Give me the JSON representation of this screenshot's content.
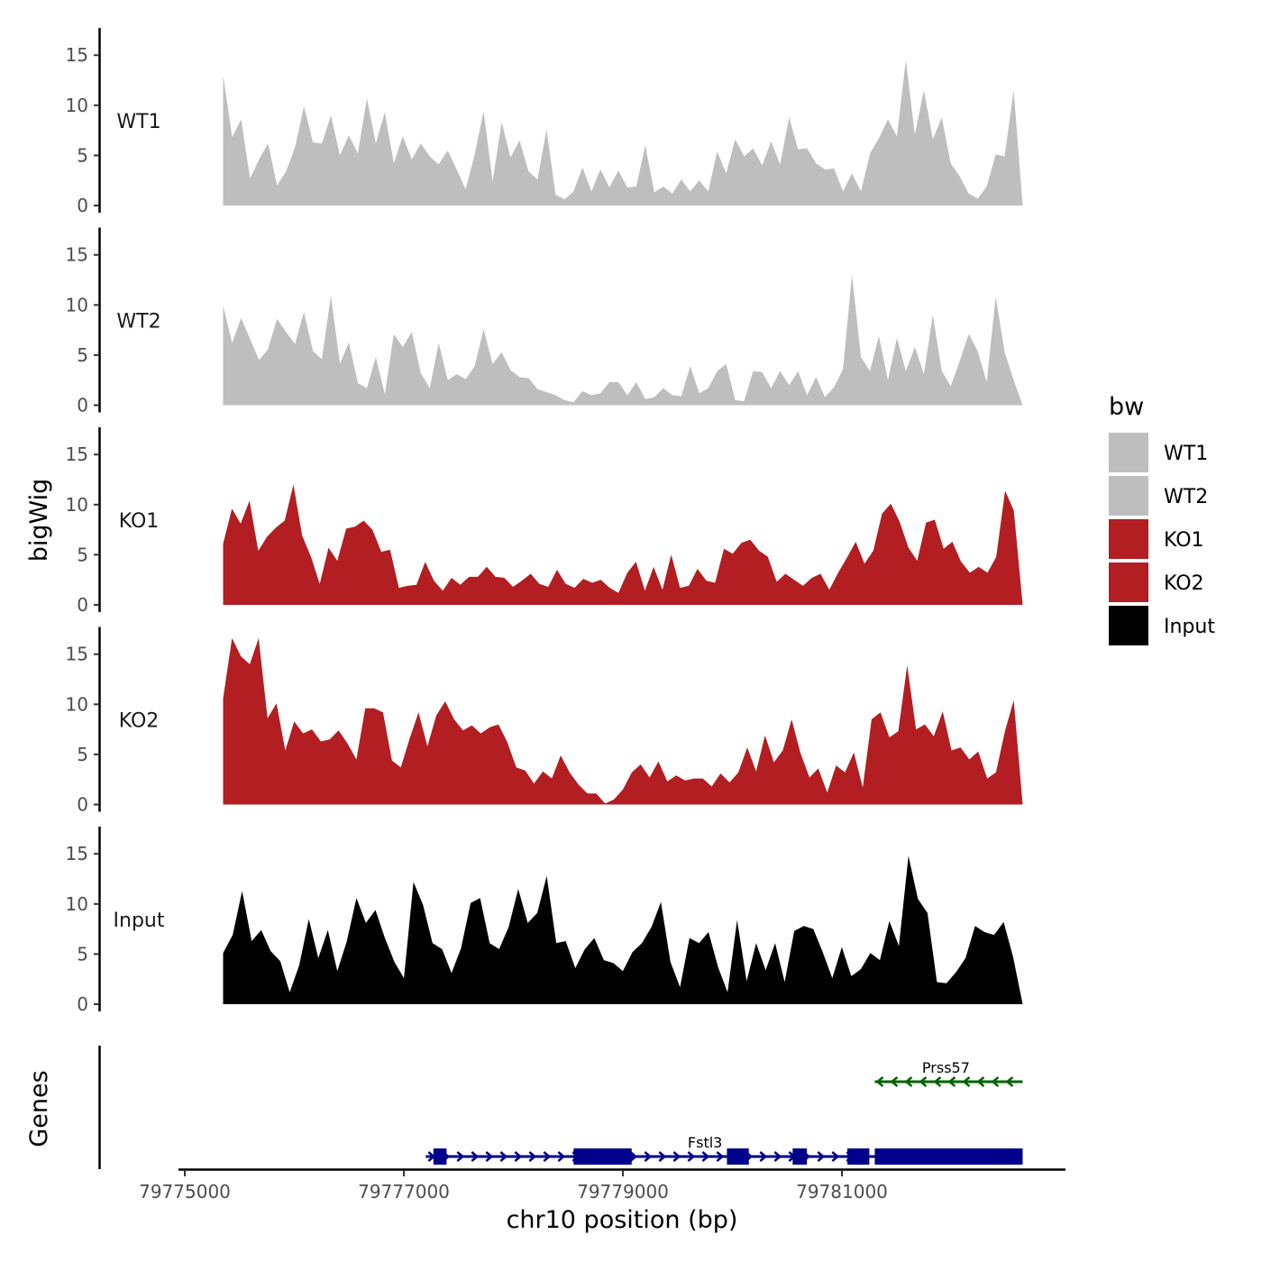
{
  "chart_data": {
    "type": "area",
    "title": "",
    "xlabel": "chr10 position (bp)",
    "ylabel": "bigWig",
    "genes_label": "Genes",
    "ylim": [
      0,
      17
    ],
    "yticks": [
      0,
      5,
      10,
      15
    ],
    "xlim": [
      79775000,
      79783000
    ],
    "xticks": [
      79775000,
      79777000,
      79779000,
      79781000
    ],
    "xtick_labels": [
      "79775000",
      "79777000",
      "79779000",
      "79781000"
    ],
    "legend": {
      "title": "bw",
      "position": "right",
      "entries": [
        {
          "label": "WT1",
          "color": "#bebebe"
        },
        {
          "label": "WT2",
          "color": "#bebebe"
        },
        {
          "label": "KO1",
          "color": "#b21e21"
        },
        {
          "label": "KO2",
          "color": "#b21e21"
        },
        {
          "label": "Input",
          "color": "#000000"
        }
      ]
    },
    "series": [
      {
        "name": "WT1",
        "color": "#bebebe",
        "x_start": 79775350,
        "x_end": 79782650,
        "values": [
          13,
          6.8,
          8.6,
          2.7,
          4.6,
          6.2,
          2,
          3.4,
          5.8,
          9.9,
          6.3,
          6.2,
          9,
          5,
          7,
          5.2,
          10.7,
          6.2,
          9.3,
          4.2,
          6.9,
          4.6,
          6.2,
          4.9,
          4.1,
          5.5,
          3.6,
          1.6,
          5.1,
          9.4,
          2.4,
          8.3,
          4.8,
          6.5,
          3.4,
          2.6,
          7.6,
          1.1,
          0.6,
          1.4,
          3.8,
          1.4,
          3.6,
          1.8,
          3.5,
          1.8,
          1.9,
          6,
          1.3,
          1.9,
          1.2,
          2.6,
          1.4,
          2.5,
          1.4,
          5.4,
          3.2,
          6.6,
          4.9,
          5.7,
          4,
          6.4,
          4.1,
          8.8,
          5.6,
          5.7,
          4.2,
          3.6,
          3.7,
          1.4,
          3.2,
          1.4,
          5.2,
          6.7,
          8.6,
          6.9,
          14.5,
          7.1,
          11.5,
          6.6,
          8.8,
          4.2,
          2.9,
          1.2,
          0.7,
          1.9,
          5.1,
          4.9,
          11.5,
          0
        ]
      },
      {
        "name": "WT2",
        "color": "#bebebe",
        "x_start": 79775350,
        "x_end": 79782650,
        "values": [
          9.9,
          6.2,
          8.7,
          6.6,
          4.5,
          5.6,
          8.6,
          7.3,
          6.1,
          9.3,
          5.4,
          4.6,
          10.9,
          4.1,
          6.3,
          2.2,
          1.7,
          4.8,
          1.1,
          7.1,
          5.8,
          7.3,
          3.2,
          1.7,
          6.2,
          2.5,
          3.1,
          2.6,
          3.9,
          7.6,
          4.1,
          5.3,
          3.5,
          2.8,
          2.7,
          1.6,
          1.3,
          1,
          0.5,
          0.3,
          1.4,
          1,
          1.2,
          2.3,
          2.3,
          1,
          2.3,
          0.6,
          0.8,
          1.7,
          1,
          0.9,
          3.9,
          1.2,
          1.7,
          3.4,
          4.1,
          0.5,
          0.4,
          3.4,
          3.3,
          1.7,
          3.4,
          2,
          3.4,
          1,
          2.8,
          0.8,
          1.8,
          3.6,
          13,
          4.8,
          3.4,
          6.9,
          2.5,
          6.7,
          3.4,
          5.8,
          3.1,
          9,
          3.4,
          1.9,
          4.4,
          7.1,
          5.4,
          2.3,
          10.8,
          5.3,
          2.5,
          0
        ]
      },
      {
        "name": "KO1",
        "color": "#b21e21",
        "x_start": 79775350,
        "x_end": 79782650,
        "values": [
          6.1,
          9.6,
          8.1,
          10.4,
          5.4,
          6.8,
          7.7,
          8.4,
          12,
          6.9,
          4.8,
          2.1,
          5.7,
          4.4,
          7.6,
          7.8,
          8.4,
          7.5,
          5.3,
          5.5,
          1.7,
          1.9,
          2,
          4.3,
          2.4,
          1.4,
          2.7,
          2,
          2.8,
          2.8,
          3.8,
          2.8,
          2.7,
          1.8,
          2.4,
          3.1,
          2.1,
          1.8,
          3.5,
          2.1,
          1.7,
          2.6,
          2.2,
          2.5,
          1.7,
          1.2,
          3.2,
          4.3,
          1.4,
          3.8,
          1.5,
          5,
          1.7,
          1.9,
          3.6,
          2.4,
          2.2,
          5.6,
          5.1,
          6.2,
          6.5,
          5.4,
          4.8,
          2.3,
          3.1,
          2.5,
          1.9,
          2.7,
          3.1,
          1.5,
          3.2,
          4.7,
          6.3,
          4.1,
          5.4,
          9.1,
          10.1,
          8.3,
          5.7,
          4.4,
          8.2,
          8.5,
          5.6,
          6.3,
          4.3,
          3.2,
          3.8,
          3.2,
          4.8,
          11.4,
          9.4,
          0
        ]
      },
      {
        "name": "KO2",
        "color": "#b21e21",
        "x_start": 79775350,
        "x_end": 79782650,
        "values": [
          10.6,
          16.6,
          14.8,
          14,
          16.6,
          8.6,
          10.1,
          5.4,
          8.3,
          7.1,
          7.5,
          6.3,
          6.5,
          7.4,
          6.1,
          4.5,
          9.6,
          9.6,
          9.2,
          4.4,
          3.7,
          6.6,
          9.2,
          5.8,
          8.9,
          10.3,
          8.5,
          7.4,
          7.9,
          7.1,
          7.7,
          8,
          6.2,
          3.7,
          3.4,
          2.1,
          3.3,
          2.6,
          4.9,
          3.2,
          2,
          1.1,
          1.1,
          0.1,
          0.5,
          1.5,
          3.2,
          4,
          2.7,
          4.3,
          2.3,
          2.9,
          2.4,
          2.6,
          2.6,
          1.8,
          3.1,
          2.2,
          3.2,
          5.7,
          3.3,
          6.9,
          4.2,
          5.4,
          8.5,
          5.1,
          2.7,
          3.6,
          1.2,
          3.9,
          3.2,
          5.2,
          1.7,
          8.5,
          9.2,
          6.7,
          7.3,
          13.9,
          7.5,
          8,
          6.8,
          9.3,
          5.4,
          5.7,
          4.5,
          5.3,
          2.6,
          3.2,
          7.3,
          10.4,
          0
        ]
      },
      {
        "name": "Input",
        "color": "#000000",
        "x_start": 79775350,
        "x_end": 79782650,
        "values": [
          5.1,
          6.9,
          11.3,
          6.3,
          7.4,
          5.3,
          4.3,
          1.2,
          3.9,
          8.5,
          4.6,
          7.4,
          3.3,
          6.3,
          10.6,
          8.1,
          9.4,
          6.6,
          4.2,
          2.6,
          12.2,
          9.9,
          6.1,
          5.5,
          3.1,
          5.6,
          10.1,
          10.6,
          6.1,
          5.5,
          7.7,
          11.5,
          8.1,
          9.1,
          12.8,
          6.1,
          6.3,
          3.6,
          5.5,
          6.6,
          4.4,
          4.1,
          3.3,
          5.2,
          6.1,
          7.7,
          10.2,
          4.2,
          1.7,
          6.6,
          6.1,
          7.2,
          3.7,
          1.2,
          8.4,
          2.3,
          6.1,
          3.4,
          6.1,
          2.2,
          7.3,
          7.8,
          7.5,
          5.2,
          2.6,
          5.7,
          2.8,
          3.5,
          5.1,
          4.4,
          8.3,
          5.8,
          14.8,
          10.5,
          9.1,
          2.2,
          2.1,
          3.2,
          4.6,
          7.8,
          7.2,
          6.9,
          8.2,
          4.7,
          0
        ]
      }
    ],
    "genes": [
      {
        "name": "Prss57",
        "strand": "-",
        "color": "#006400",
        "start": 79781300,
        "end": 79782650,
        "exons": []
      },
      {
        "name": "Fstl3",
        "strand": "+",
        "color": "#00008b",
        "start": 79777200,
        "end": 79782650,
        "exons": [
          [
            79777270,
            79777390
          ],
          [
            79778550,
            79779080
          ],
          [
            79779950,
            79780150
          ],
          [
            79780550,
            79780680
          ],
          [
            79781050,
            79781250
          ],
          [
            79781300,
            79782650
          ]
        ]
      }
    ]
  }
}
